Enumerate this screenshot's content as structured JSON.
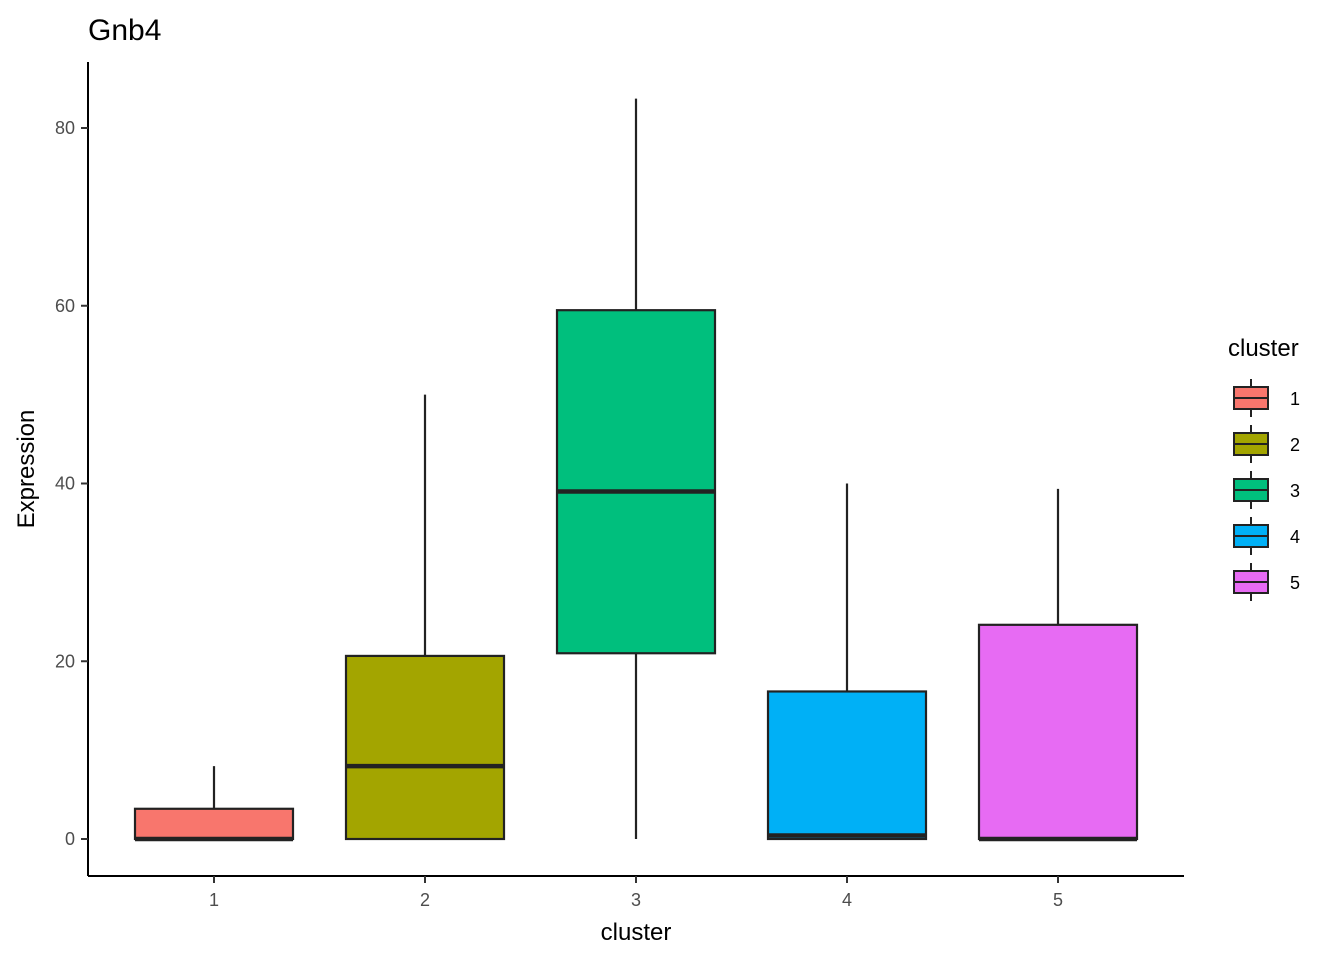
{
  "chart_data": {
    "type": "boxplot",
    "title": "Gnb4",
    "xlabel": "cluster",
    "ylabel": "Expression",
    "categories": [
      "1",
      "2",
      "3",
      "4",
      "5"
    ],
    "ylim": [
      -4,
      87
    ],
    "yticks": [
      0,
      20,
      40,
      60,
      80
    ],
    "grid": false,
    "legend": {
      "title": "cluster",
      "placement": "right",
      "entries": [
        "1",
        "2",
        "3",
        "4",
        "5"
      ]
    },
    "series": [
      {
        "category": "1",
        "color": "#F8766D",
        "min": 0,
        "q1": 0,
        "median": 0,
        "q3": 3.4,
        "max": 8.2
      },
      {
        "category": "2",
        "color": "#A3A500",
        "min": 0,
        "q1": 0,
        "median": 8.2,
        "q3": 20.6,
        "max": 50.0
      },
      {
        "category": "3",
        "color": "#00BF7D",
        "min": 0,
        "q1": 20.9,
        "median": 39.1,
        "q3": 59.5,
        "max": 83.3
      },
      {
        "category": "4",
        "color": "#00B0F6",
        "min": 0,
        "q1": 0,
        "median": 0.4,
        "q3": 16.6,
        "max": 40.0
      },
      {
        "category": "5",
        "color": "#E76BF3",
        "min": 0,
        "q1": 0,
        "median": 0,
        "q3": 24.1,
        "max": 39.4
      }
    ]
  }
}
